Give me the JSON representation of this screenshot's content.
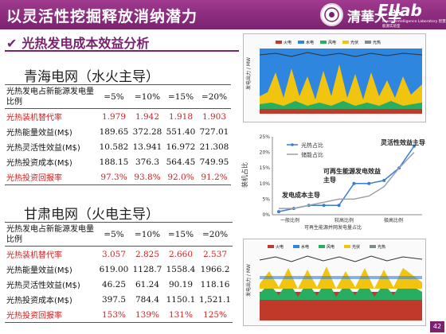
{
  "header": {
    "title": "以灵活性挖掘释放消纳潜力",
    "logo_university": "清華大学",
    "logo_lab": "EIlab",
    "logo_lab_sub": "Energy Intelligence Laboratory 智慧能源实验室"
  },
  "section": {
    "title": "光热发电成本效益分析"
  },
  "qinghai": {
    "title": "青海电网（水火主导）",
    "header": {
      "label": "光热发电占新能源发电量比例",
      "cols": [
        "=5%",
        "=10%",
        "=15%",
        "=20%"
      ]
    },
    "rows": [
      {
        "label": "光热装机替代率",
        "values": [
          "1.979",
          "1.942",
          "1.918",
          "1.903"
        ]
      },
      {
        "label": "光热能量效益(M$)",
        "values": [
          "189.65",
          "372.28",
          "551.40",
          "727.01"
        ]
      },
      {
        "label": "光热灵活性效益(M$)",
        "values": [
          "10.582",
          "13.941",
          "16.972",
          "21.308"
        ]
      },
      {
        "label": "光热投资成本(M$)",
        "values": [
          "188.15",
          "376.3",
          "564.45",
          "749.95"
        ]
      },
      {
        "label": "光热投资回报率",
        "values": [
          "97.3%",
          "93.8%",
          "92.0%",
          "91.2%"
        ]
      }
    ]
  },
  "gansu": {
    "title": "甘肃电网（火电主导）",
    "header": {
      "label": "光热发电占新能源发电量比例",
      "cols": [
        "=5%",
        "=10%",
        "=15%",
        "=20%"
      ]
    },
    "rows": [
      {
        "label": "光热装机替代率",
        "values": [
          "3.057",
          "2.825",
          "2.660",
          "2.537"
        ]
      },
      {
        "label": "光热能量效益(M$)",
        "values": [
          "619.00",
          "1128.7",
          "1558.4",
          "1966.2"
        ]
      },
      {
        "label": "光热灵活性效益(M$)",
        "values": [
          "46.25",
          "61.24",
          "90.19",
          "118.16"
        ]
      },
      {
        "label": "光热投资成本(M$)",
        "values": [
          "397.5",
          "784.4",
          "1150.1",
          "1,521.1"
        ]
      },
      {
        "label": "光热投资回报率",
        "values": [
          "153%",
          "139%",
          "131%",
          "125%"
        ]
      }
    ]
  },
  "chart_data": [
    {
      "type": "area",
      "legend": [
        "火电",
        "水电",
        "风电",
        "光伏",
        "光热"
      ],
      "ylabel": "发电出力 / MW"
    },
    {
      "type": "line",
      "series": [
        {
          "name": "光热占比",
          "values": [
            1,
            2,
            3,
            3,
            3,
            10,
            10,
            11,
            15,
            22
          ]
        },
        {
          "name": "储能占比",
          "values": [
            2,
            2,
            3,
            4,
            5,
            5,
            6,
            9,
            15,
            20
          ]
        }
      ],
      "ylabel": "装机占比",
      "xlabel": "可再生能源并网发电量占比",
      "x_tick_labels": [
        "一般比例",
        "较高比例",
        "极高比例"
      ],
      "y_tick_labels": [
        "0%",
        "5%",
        "10%",
        "15%",
        "20%",
        "25%"
      ],
      "ylim": [
        0,
        25
      ],
      "annotations": [
        "灵活性效益主导",
        "可再生能源发电效益主导",
        "发电成本主导"
      ]
    },
    {
      "type": "area",
      "legend": [
        "火电",
        "水电",
        "风电",
        "光伏",
        "光热"
      ],
      "ylabel": "发电出力 / MW"
    }
  ],
  "page": {
    "number": "42"
  }
}
